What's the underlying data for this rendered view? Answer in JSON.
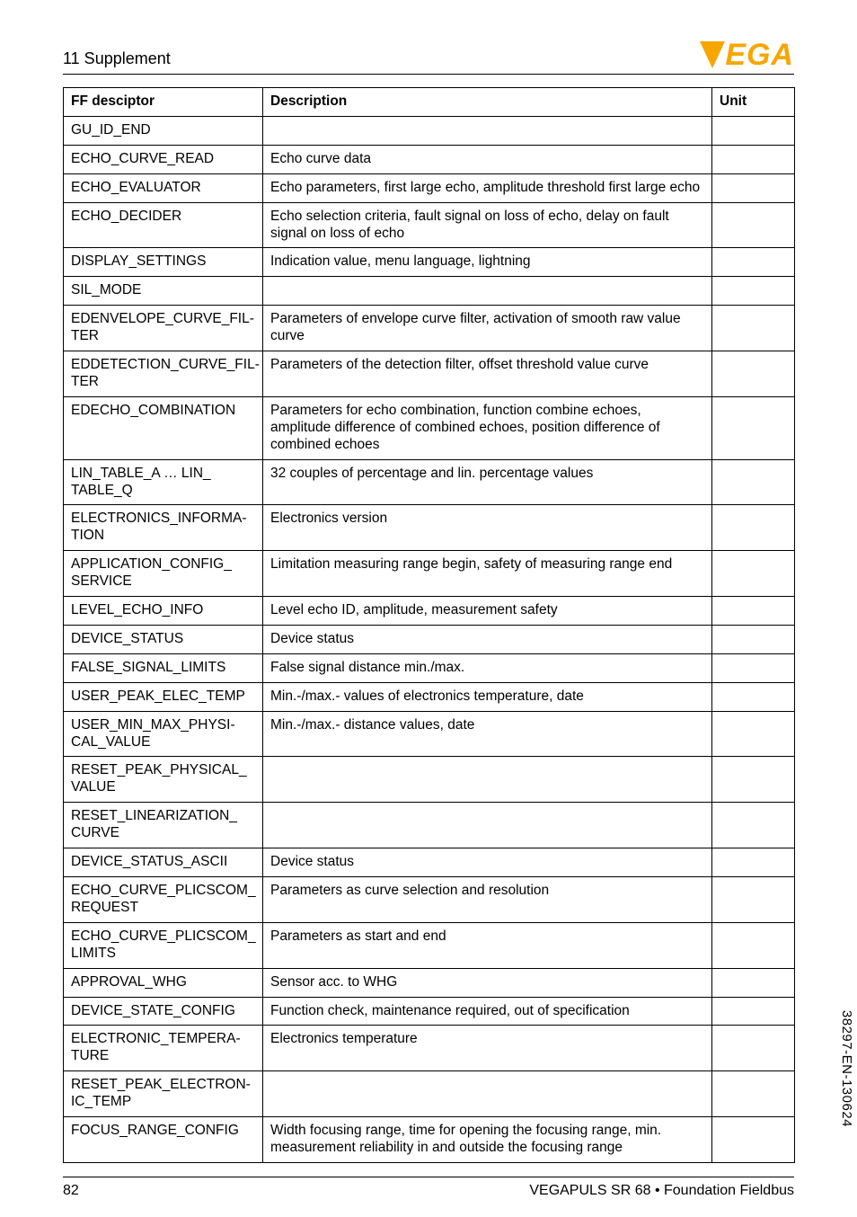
{
  "header": {
    "section_title": "11 Supplement",
    "logo_text": "EGA",
    "logo_color": "#f7a600"
  },
  "table": {
    "columns": [
      "FF desciptor",
      "Description",
      "Unit"
    ],
    "rows": [
      [
        "GU_ID_END",
        "",
        ""
      ],
      [
        "ECHO_CURVE_READ",
        "Echo curve data",
        ""
      ],
      [
        "ECHO_EVALUATOR",
        "Echo parameters, first large echo, amplitude threshold first large echo",
        ""
      ],
      [
        "ECHO_DECIDER",
        "Echo selection criteria, fault signal on loss of echo, delay on fault signal on loss of echo",
        ""
      ],
      [
        "DISPLAY_SETTINGS",
        "Indication value, menu language, lightning",
        ""
      ],
      [
        "SIL_MODE",
        "",
        ""
      ],
      [
        "EDENVELOPE_CURVE_FIL-\nTER",
        "Parameters of envelope curve filter, activation of smooth raw value curve",
        ""
      ],
      [
        "EDDETECTION_CURVE_FIL-\nTER",
        "Parameters of the detection filter, offset threshold value curve",
        ""
      ],
      [
        "EDECHO_COMBINATION",
        "Parameters for echo combination, function combine echoes, amplitude difference of combined echoes, position difference of combined echoes",
        ""
      ],
      [
        "LIN_TABLE_A … LIN_\nTABLE_Q",
        "32 couples of percentage and lin. percentage values",
        ""
      ],
      [
        "ELECTRONICS_INFORMA-\nTION",
        "Electronics version",
        ""
      ],
      [
        "APPLICATION_CONFIG_\nSERVICE",
        "Limitation measuring range begin, safety of measuring range end",
        ""
      ],
      [
        "LEVEL_ECHO_INFO",
        "Level echo ID, amplitude, measurement safety",
        ""
      ],
      [
        "DEVICE_STATUS",
        "Device status",
        ""
      ],
      [
        "FALSE_SIGNAL_LIMITS",
        "False signal distance min./max.",
        ""
      ],
      [
        "USER_PEAK_ELEC_TEMP",
        "Min.-/max.- values of electronics temperature, date",
        ""
      ],
      [
        "USER_MIN_MAX_PHYSI-\nCAL_VALUE",
        "Min.-/max.- distance values, date",
        ""
      ],
      [
        "RESET_PEAK_PHYSICAL_\nVALUE",
        "",
        ""
      ],
      [
        "RESET_LINEARIZATION_\nCURVE",
        "",
        ""
      ],
      [
        "DEVICE_STATUS_ASCII",
        "Device status",
        ""
      ],
      [
        "ECHO_CURVE_PLICSCOM_\nREQUEST",
        "Parameters as curve selection and resolution",
        ""
      ],
      [
        "ECHO_CURVE_PLICSCOM_\nLIMITS",
        "Parameters as start and end",
        ""
      ],
      [
        "APPROVAL_WHG",
        "Sensor acc. to WHG",
        ""
      ],
      [
        "DEVICE_STATE_CONFIG",
        "Function check, maintenance required, out of specification",
        ""
      ],
      [
        "ELECTRONIC_TEMPERA-\nTURE",
        "Electronics temperature",
        ""
      ],
      [
        "RESET_PEAK_ELECTRON-\nIC_TEMP",
        "",
        ""
      ],
      [
        "FOCUS_RANGE_CONFIG",
        "Width focusing range, time for opening the focusing range, min. measurement reliability in and outside the focusing range",
        ""
      ]
    ]
  },
  "footer": {
    "page_number": "82",
    "doc_title": "VEGAPULS SR 68 • Foundation Fieldbus"
  },
  "side_code": "38297-EN-130624"
}
